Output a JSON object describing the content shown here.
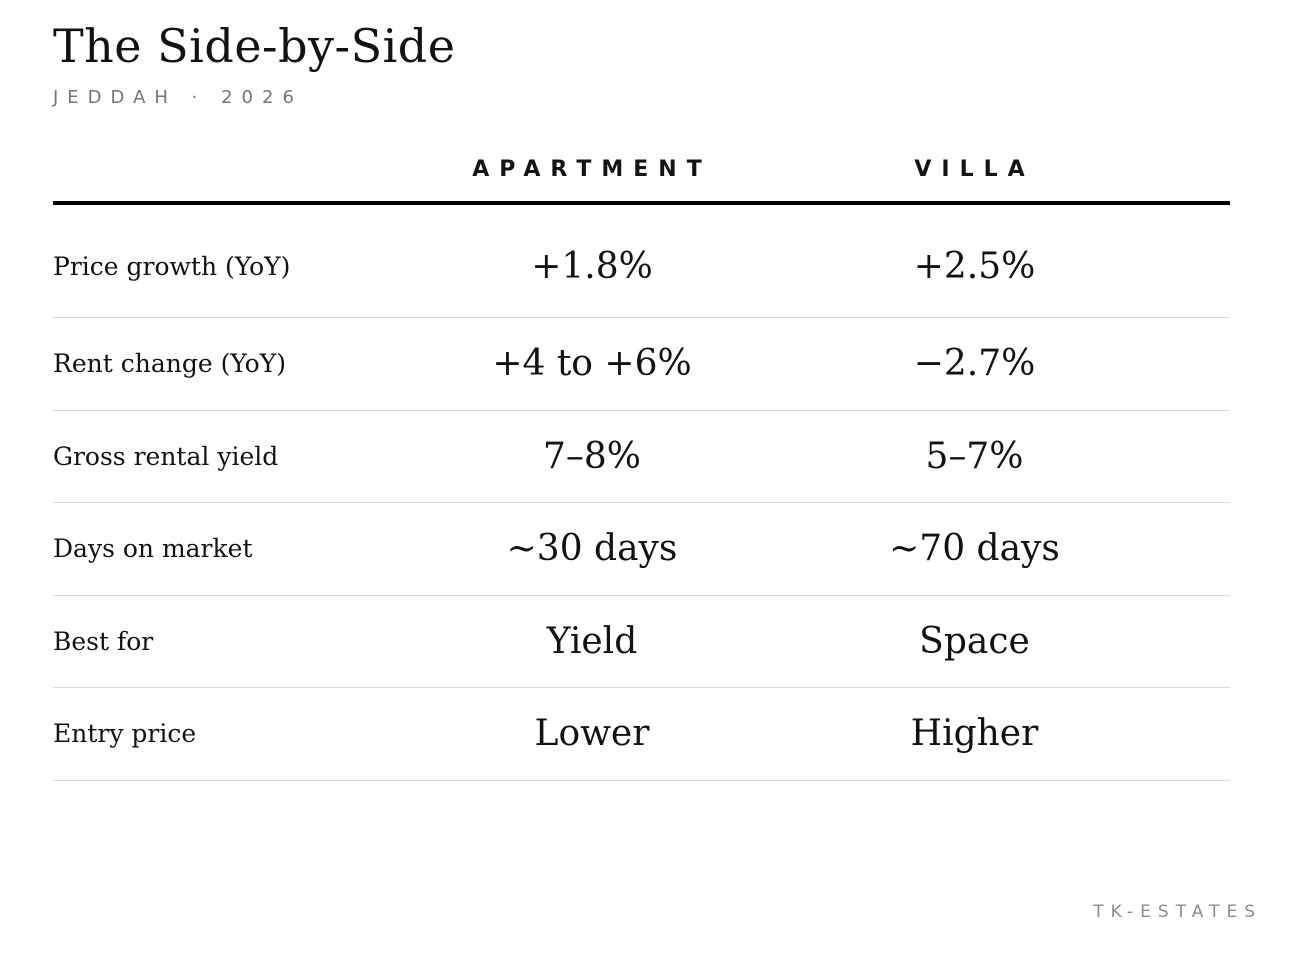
{
  "header": {
    "title": "The Side-by-Side",
    "subtitle": "JEDDAH · 2026"
  },
  "table": {
    "columns": [
      "APARTMENT",
      "VILLA"
    ],
    "rows": [
      {
        "label": "Price growth (YoY)",
        "apartment": "+1.8%",
        "villa": "+2.5%"
      },
      {
        "label": "Rent change (YoY)",
        "apartment": "+4 to +6%",
        "villa": "−2.7%"
      },
      {
        "label": "Gross rental yield",
        "apartment": "7–8%",
        "villa": "5–7%"
      },
      {
        "label": "Days on market",
        "apartment": "~30 days",
        "villa": "~70 days"
      },
      {
        "label": "Best for",
        "apartment": "Yield",
        "villa": "Space"
      },
      {
        "label": "Entry price",
        "apartment": "Lower",
        "villa": "Higher"
      }
    ]
  },
  "footer": {
    "brand": "TK-ESTATES"
  },
  "chart_data": {
    "type": "table",
    "title": "The Side-by-Side",
    "subtitle": "JEDDAH · 2026",
    "columns": [
      "",
      "APARTMENT",
      "VILLA"
    ],
    "rows": [
      [
        "Price growth (YoY)",
        "+1.8%",
        "+2.5%"
      ],
      [
        "Rent change (YoY)",
        "+4 to +6%",
        "−2.7%"
      ],
      [
        "Gross rental yield",
        "7–8%",
        "5–7%"
      ],
      [
        "Days on market",
        "~30 days",
        "~70 days"
      ],
      [
        "Best for",
        "Yield",
        "Space"
      ],
      [
        "Entry price",
        "Lower",
        "Higher"
      ]
    ],
    "source_label": "TK-ESTATES"
  },
  "colors": {
    "background": "#ffffff",
    "text_primary": "#121212",
    "subtitle_muted": "#757575",
    "brand_muted": "#8c8c8c",
    "header_rule": "#000000",
    "row_divider": "#d8d8d8"
  }
}
